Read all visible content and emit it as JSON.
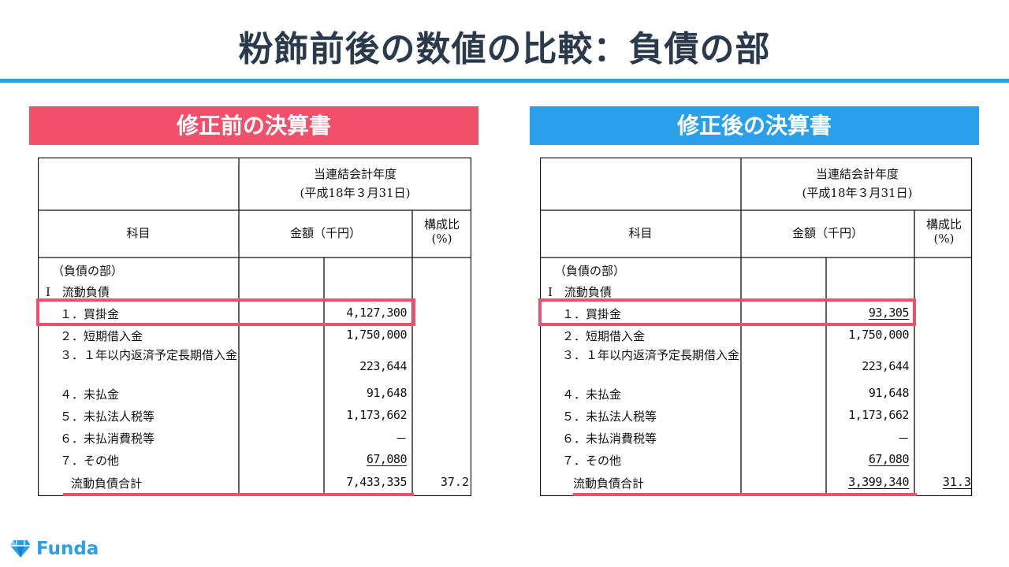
{
  "title": "粉飾前後の数値の比較：負債の部",
  "before": {
    "banner": "修正前の決算書",
    "header": {
      "period_line1": "当連結会計年度",
      "period_line2": "(平成18年３月31日)",
      "subject": "科目",
      "amount": "金額（千円）",
      "ratio_line1": "構成比",
      "ratio_line2": "(%)"
    },
    "section": "（負債の部）",
    "subsection": "Ⅰ　流動負債",
    "rows": [
      {
        "label": "１．買掛金",
        "value": "4,127,300"
      },
      {
        "label": "２．短期借入金",
        "value": "1,750,000"
      },
      {
        "label": "３．１年以内返済予定長期借入金",
        "value": "223,644"
      },
      {
        "label": "４．未払金",
        "value": "91,648"
      },
      {
        "label": "５．未払法人税等",
        "value": "1,173,662"
      },
      {
        "label": "６．未払消費税等",
        "value": "－"
      },
      {
        "label": "７．その他",
        "value": "67,080"
      }
    ],
    "total": {
      "label": "流動負債合計",
      "value": "7,433,335",
      "ratio": "37.2"
    }
  },
  "after": {
    "banner": "修正後の決算書",
    "header": {
      "period_line1": "当連結会計年度",
      "period_line2": "(平成18年３月31日)",
      "subject": "科目",
      "amount": "金額（千円）",
      "ratio_line1": "構成比",
      "ratio_line2": "(%)"
    },
    "section": "（負債の部）",
    "subsection": "Ⅰ　流動負債",
    "rows": [
      {
        "label": "１．買掛金",
        "value": "93,305"
      },
      {
        "label": "２．短期借入金",
        "value": "1,750,000"
      },
      {
        "label": "３．１年以内返済予定長期借入金",
        "value": "223,644"
      },
      {
        "label": "４．未払金",
        "value": "91,648"
      },
      {
        "label": "５．未払法人税等",
        "value": "1,173,662"
      },
      {
        "label": "６．未払消費税等",
        "value": "－"
      },
      {
        "label": "７．その他",
        "value": "67,080"
      }
    ],
    "total": {
      "label": "流動負債合計",
      "value": "3,399,340",
      "ratio": "31.3"
    }
  },
  "logo": {
    "text": "Funda",
    "icon": "gem-icon",
    "color": "#2aa0ea"
  },
  "colors": {
    "highlight": "#f0506a",
    "accent_blue": "#2aa0ea",
    "rule": "#2d9ee6",
    "title": "#2b3a4a"
  }
}
